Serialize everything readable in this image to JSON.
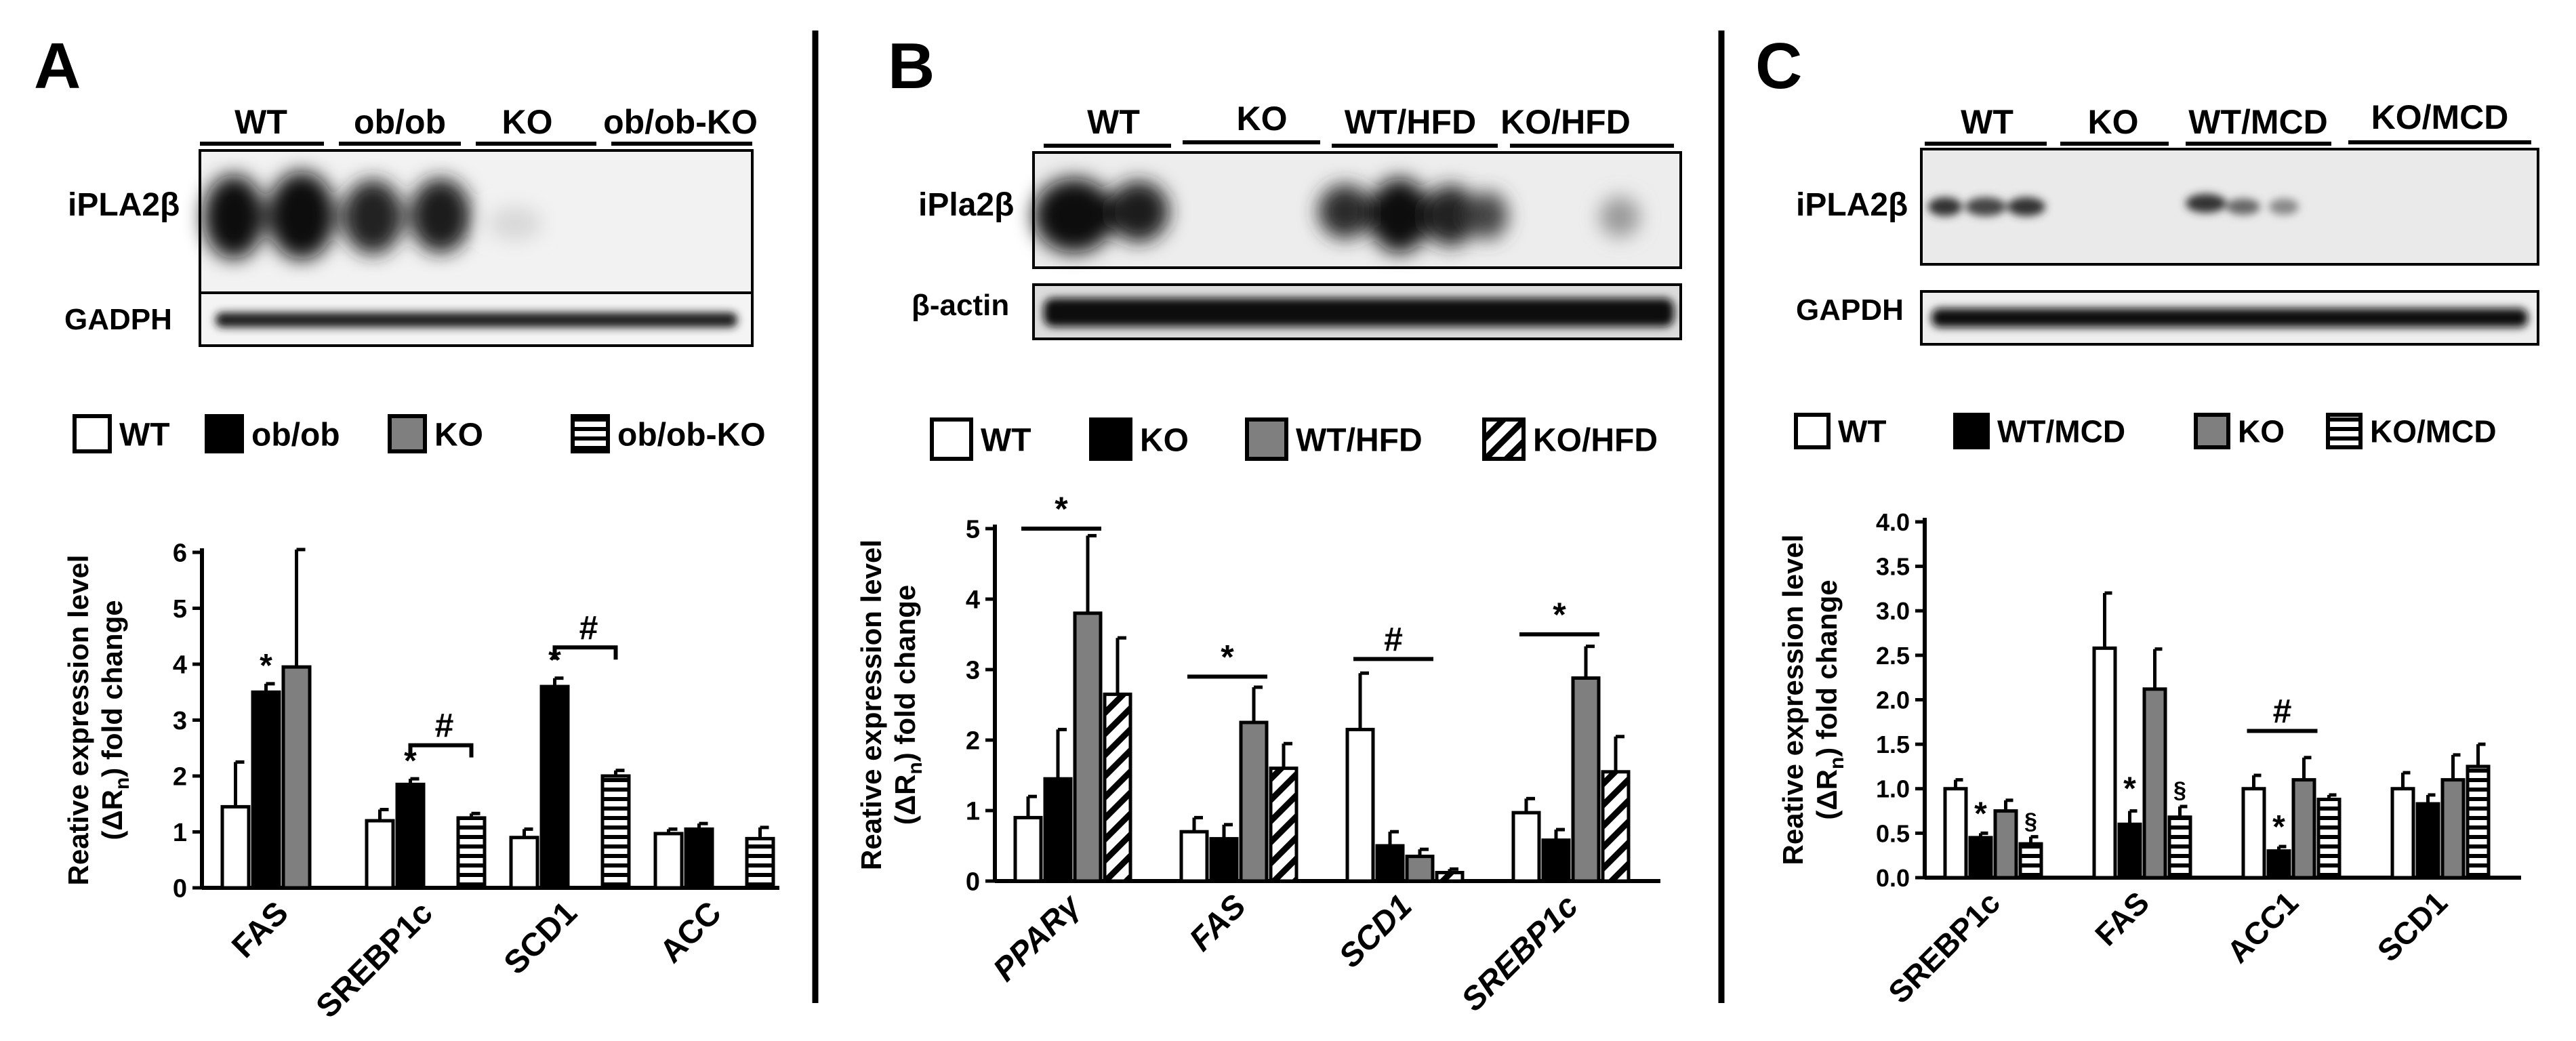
{
  "figure": {
    "panels": [
      {
        "letter": "A",
        "blot": {
          "group_labels": [
            "WT",
            "ob/ob",
            "KO",
            "ob/ob-KO"
          ],
          "row_labels": [
            "iPLA2β",
            "GADPH"
          ]
        },
        "legend": [
          {
            "label": "WT",
            "pattern": "white"
          },
          {
            "label": "ob/ob",
            "pattern": "black"
          },
          {
            "label": "KO",
            "pattern": "gray"
          },
          {
            "label": "ob/ob-KO",
            "pattern": "hstripe"
          }
        ]
      },
      {
        "letter": "B",
        "blot": {
          "group_labels": [
            "WT",
            "KO",
            "WT/HFD",
            "KO/HFD"
          ],
          "row_labels": [
            "iPla2β",
            "β-actin"
          ]
        },
        "legend": [
          {
            "label": "WT",
            "pattern": "white"
          },
          {
            "label": "KO",
            "pattern": "black"
          },
          {
            "label": "WT/HFD",
            "pattern": "gray"
          },
          {
            "label": "KO/HFD",
            "pattern": "diag"
          }
        ]
      },
      {
        "letter": "C",
        "blot": {
          "group_labels": [
            "WT",
            "KO",
            "WT/MCD",
            "KO/MCD"
          ],
          "row_labels": [
            "iPLA2β",
            "GAPDH"
          ]
        },
        "legend": [
          {
            "label": "WT",
            "pattern": "white"
          },
          {
            "label": "WT/MCD",
            "pattern": "black"
          },
          {
            "label": "KO",
            "pattern": "gray"
          },
          {
            "label": "KO/MCD",
            "pattern": "hstripe"
          }
        ]
      }
    ]
  },
  "chart_data": [
    {
      "type": "bar",
      "panel": "A",
      "ylabel_line1": "Reative expression level",
      "ylabel_line2_parts": [
        "(ΔR",
        "n",
        ") fold change"
      ],
      "ylim": [
        0,
        6
      ],
      "yticks": [
        "0",
        "1",
        "2",
        "3",
        "4",
        "5",
        "6"
      ],
      "categories": [
        "FAS",
        "SREBP1c",
        "SCD1",
        "ACC"
      ],
      "italic_categories": false,
      "series": [
        {
          "name": "WT",
          "values": [
            1.45,
            1.2,
            0.9,
            0.97
          ],
          "errors": [
            0.8,
            0.2,
            0.15,
            0.08
          ]
        },
        {
          "name": "ob/ob",
          "values": [
            3.5,
            1.85,
            3.6,
            1.05
          ],
          "errors": [
            0.15,
            0.1,
            0.15,
            0.1
          ]
        },
        {
          "name": "KO",
          "values": [
            3.95,
            0,
            0,
            0
          ],
          "errors": [
            2.1,
            0,
            0,
            0
          ]
        },
        {
          "name": "ob/ob-KO",
          "values": [
            0,
            1.25,
            2.0,
            0.88
          ],
          "errors": [
            0,
            0.08,
            0.1,
            0.2
          ]
        }
      ],
      "annotations": [
        {
          "text": "*",
          "category": 0,
          "series": 1,
          "y": 3.78,
          "kind": "star"
        },
        {
          "text": "*",
          "category": 1,
          "series": 1,
          "y": 2.08,
          "kind": "star"
        },
        {
          "text": "*",
          "category": 2,
          "series": 1,
          "y": 3.88,
          "kind": "star"
        },
        {
          "text": "#",
          "category": 1,
          "from_series": 1,
          "to_series": 3,
          "y": 2.55,
          "kind": "bracket"
        },
        {
          "text": "#",
          "category": 2,
          "from_series": 1,
          "to_series": 3,
          "y": 4.3,
          "kind": "bracket"
        }
      ]
    },
    {
      "type": "bar",
      "panel": "B",
      "ylabel_line1": "Reative expression level",
      "ylabel_line2_parts": [
        "(ΔR",
        "n",
        ") fold change"
      ],
      "ylim": [
        0,
        5
      ],
      "yticks": [
        "0",
        "1",
        "2",
        "3",
        "4",
        "5"
      ],
      "categories": [
        "PPARγ",
        "FAS",
        "SCD1",
        "SREBP1c"
      ],
      "italic_categories": true,
      "series": [
        {
          "name": "WT",
          "values": [
            0.9,
            0.7,
            2.15,
            0.97
          ],
          "errors": [
            0.3,
            0.2,
            0.8,
            0.2
          ]
        },
        {
          "name": "KO",
          "values": [
            1.45,
            0.6,
            0.5,
            0.58
          ],
          "errors": [
            0.7,
            0.2,
            0.2,
            0.15
          ]
        },
        {
          "name": "WT/HFD",
          "values": [
            3.8,
            2.25,
            0.35,
            2.88
          ],
          "errors": [
            1.1,
            0.5,
            0.1,
            0.45
          ]
        },
        {
          "name": "KO/HFD",
          "values": [
            2.65,
            1.6,
            0.12,
            1.55
          ],
          "errors": [
            0.8,
            0.35,
            0.05,
            0.5
          ]
        }
      ],
      "annotations": [
        {
          "text": "*",
          "category": 0,
          "from_series": 0,
          "to_series": 2,
          "y": 5.0,
          "kind": "line"
        },
        {
          "text": "*",
          "category": 1,
          "from_series": 0,
          "to_series": 2,
          "y": 2.9,
          "kind": "line"
        },
        {
          "text": "#",
          "category": 2,
          "from_series": 0,
          "to_series": 2,
          "y": 3.15,
          "kind": "line"
        },
        {
          "text": "*",
          "category": 3,
          "from_series": 0,
          "to_series": 2,
          "y": 3.5,
          "kind": "line"
        }
      ]
    },
    {
      "type": "bar",
      "panel": "C",
      "ylabel_line1": "Reative expression level",
      "ylabel_line2_parts": [
        "(ΔR",
        "n",
        ") fold change"
      ],
      "ylim": [
        0,
        4
      ],
      "yticks": [
        "0.0",
        "0.5",
        "1.0",
        "1.5",
        "2.0",
        "2.5",
        "3.0",
        "3.5",
        "4.0"
      ],
      "categories": [
        "SREBP1c",
        "FAS",
        "ACC1",
        "SCD1"
      ],
      "italic_categories": false,
      "series": [
        {
          "name": "WT",
          "values": [
            1.0,
            2.58,
            1.0,
            1.0
          ],
          "errors": [
            0.1,
            0.62,
            0.15,
            0.18
          ]
        },
        {
          "name": "WT/MCD",
          "values": [
            0.45,
            0.6,
            0.3,
            0.83
          ],
          "errors": [
            0.05,
            0.15,
            0.05,
            0.1
          ]
        },
        {
          "name": "KO",
          "values": [
            0.75,
            2.12,
            1.1,
            1.1
          ],
          "errors": [
            0.12,
            0.45,
            0.25,
            0.28
          ]
        },
        {
          "name": "KO/MCD",
          "values": [
            0.38,
            0.68,
            0.88,
            1.25
          ],
          "errors": [
            0.08,
            0.12,
            0.05,
            0.25
          ]
        }
      ],
      "annotations": [
        {
          "text": "*",
          "category": 0,
          "series": 1,
          "y": 0.6,
          "kind": "star"
        },
        {
          "text": "§",
          "category": 0,
          "series": 3,
          "y": 0.55,
          "kind": "star"
        },
        {
          "text": "*",
          "category": 1,
          "series": 1,
          "y": 0.88,
          "kind": "star"
        },
        {
          "text": "§",
          "category": 1,
          "series": 3,
          "y": 0.9,
          "kind": "star"
        },
        {
          "text": "*",
          "category": 2,
          "series": 1,
          "y": 0.45,
          "kind": "star"
        },
        {
          "text": "#",
          "category": 2,
          "from_series": 0,
          "to_series": 2,
          "y": 1.65,
          "kind": "line"
        }
      ]
    }
  ]
}
